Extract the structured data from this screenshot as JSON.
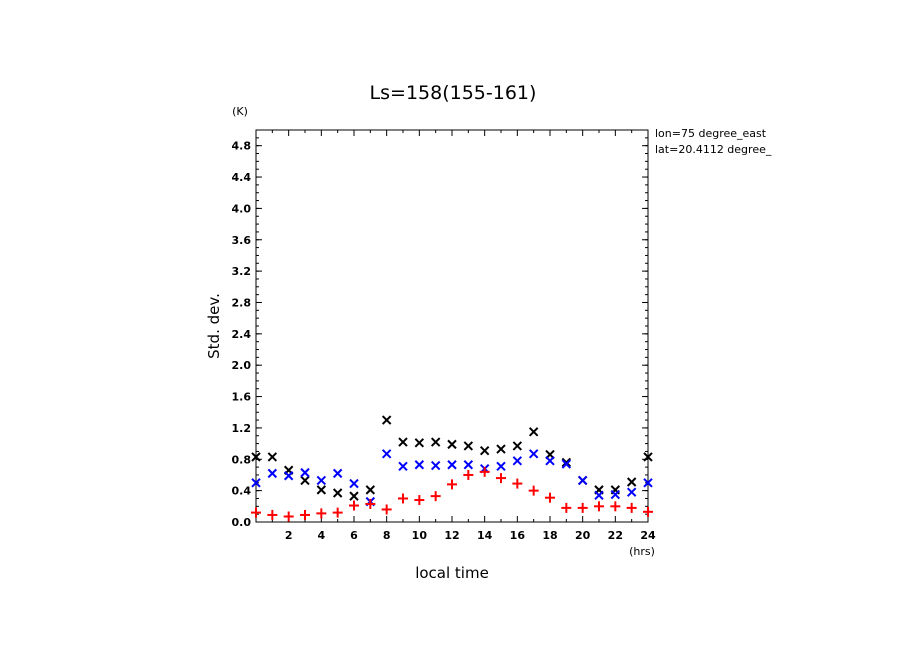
{
  "chart_data": {
    "type": "scatter",
    "title": "Ls=158(155-161)",
    "xlabel": "local time",
    "ylabel": "Std. dev.",
    "x_unit": "(hrs)",
    "y_unit": "(K)",
    "annotation": [
      "lon=75 degree_east",
      "lat=20.4112 degree_"
    ],
    "xlim": [
      0,
      24
    ],
    "ylim": [
      0,
      5.0
    ],
    "xticks": [
      2,
      4,
      6,
      8,
      10,
      12,
      14,
      16,
      18,
      20,
      22,
      24
    ],
    "yticks": [
      0.0,
      0.4,
      0.8,
      1.2,
      1.6,
      2.0,
      2.4,
      2.8,
      3.2,
      3.6,
      4.0,
      4.4,
      4.8
    ],
    "x": [
      0,
      1,
      2,
      3,
      4,
      5,
      6,
      7,
      8,
      9,
      10,
      11,
      12,
      13,
      14,
      15,
      16,
      17,
      18,
      19,
      20,
      21,
      22,
      23,
      24
    ],
    "series": [
      {
        "marker": "x",
        "color": "#000000",
        "values": [
          0.83,
          0.83,
          0.66,
          0.53,
          0.41,
          0.37,
          0.33,
          0.41,
          1.3,
          1.02,
          1.01,
          1.02,
          0.99,
          0.97,
          0.91,
          0.93,
          0.97,
          1.15,
          0.86,
          0.76,
          0.53,
          0.41,
          0.41,
          0.51,
          0.83
        ]
      },
      {
        "marker": "x",
        "color": "#0000ff",
        "values": [
          0.5,
          0.62,
          0.59,
          0.63,
          0.53,
          0.62,
          0.49,
          0.26,
          0.87,
          0.71,
          0.73,
          0.72,
          0.73,
          0.73,
          0.68,
          0.71,
          0.78,
          0.87,
          0.78,
          0.74,
          0.53,
          0.34,
          0.35,
          0.38,
          0.5
        ]
      },
      {
        "marker": "+",
        "color": "#ff0000",
        "values": [
          0.12,
          0.09,
          0.07,
          0.09,
          0.11,
          0.12,
          0.21,
          0.23,
          0.16,
          0.3,
          0.28,
          0.33,
          0.48,
          0.6,
          0.64,
          0.56,
          0.49,
          0.4,
          0.31,
          0.18,
          0.18,
          0.2,
          0.2,
          0.18,
          0.13
        ]
      }
    ]
  }
}
